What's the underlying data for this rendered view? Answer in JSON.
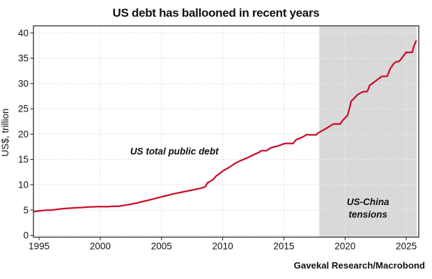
{
  "figure": {
    "title": "US debt has ballooned in recent years",
    "source": "Gavekal Research/Macrobond"
  },
  "chart_data": {
    "type": "line",
    "title": "US debt has ballooned in recent years",
    "xlabel": "",
    "ylabel": "US$, trillion",
    "x_ticks": [
      1995,
      2000,
      2005,
      2010,
      2015,
      2020,
      2025
    ],
    "y_ticks": [
      0,
      5,
      10,
      15,
      20,
      25,
      30,
      35,
      40
    ],
    "xlim": [
      1994.54,
      2026.02
    ],
    "ylim": [
      -0.35,
      41.4
    ],
    "grid": "dotted",
    "legend_position": "none",
    "colors": {
      "line": "#c8102e",
      "band": "#d9d9d9",
      "grid": "#c6c6c6",
      "grid_on_band": "#ffffff",
      "frame": "#1c1c1c"
    },
    "shaded_region": {
      "label": "US-China tensions",
      "x_start": 2017.9,
      "x_end": 2025.85,
      "color": "#d9d9d9"
    },
    "series": [
      {
        "name": "US total public debt",
        "color": "#c8102e",
        "points": [
          [
            1994.6,
            4.7
          ],
          [
            1995,
            4.85
          ],
          [
            1995.5,
            4.95
          ],
          [
            1996,
            5.0
          ],
          [
            1996.5,
            5.15
          ],
          [
            1997,
            5.3
          ],
          [
            1997.5,
            5.37
          ],
          [
            1998,
            5.45
          ],
          [
            1998.5,
            5.5
          ],
          [
            1999,
            5.6
          ],
          [
            1999.5,
            5.65
          ],
          [
            2000,
            5.7
          ],
          [
            2000.5,
            5.66
          ],
          [
            2001,
            5.72
          ],
          [
            2001.5,
            5.75
          ],
          [
            2002,
            5.95
          ],
          [
            2002.5,
            6.15
          ],
          [
            2003,
            6.4
          ],
          [
            2003.5,
            6.7
          ],
          [
            2004,
            7.0
          ],
          [
            2004.5,
            7.3
          ],
          [
            2005,
            7.6
          ],
          [
            2005.5,
            7.9
          ],
          [
            2006,
            8.2
          ],
          [
            2006.5,
            8.45
          ],
          [
            2007,
            8.7
          ],
          [
            2007.5,
            8.95
          ],
          [
            2008,
            9.2
          ],
          [
            2008.35,
            9.4
          ],
          [
            2008.6,
            9.65
          ],
          [
            2008.75,
            10.35
          ],
          [
            2009,
            10.7
          ],
          [
            2009.25,
            11.1
          ],
          [
            2009.5,
            11.8
          ],
          [
            2009.75,
            12.2
          ],
          [
            2010,
            12.7
          ],
          [
            2010.5,
            13.4
          ],
          [
            2011,
            14.2
          ],
          [
            2011.5,
            14.8
          ],
          [
            2012,
            15.3
          ],
          [
            2012.5,
            15.9
          ],
          [
            2013,
            16.45
          ],
          [
            2013.15,
            16.74
          ],
          [
            2013.6,
            16.74
          ],
          [
            2013.8,
            17.1
          ],
          [
            2014,
            17.35
          ],
          [
            2014.5,
            17.65
          ],
          [
            2015,
            18.1
          ],
          [
            2015.15,
            18.15
          ],
          [
            2015.75,
            18.15
          ],
          [
            2016,
            18.9
          ],
          [
            2016.5,
            19.4
          ],
          [
            2016.9,
            19.95
          ],
          [
            2017.05,
            19.85
          ],
          [
            2017.65,
            19.85
          ],
          [
            2017.8,
            20.25
          ],
          [
            2018,
            20.5
          ],
          [
            2018.5,
            21.2
          ],
          [
            2019,
            21.95
          ],
          [
            2019.15,
            22.0
          ],
          [
            2019.6,
            22.0
          ],
          [
            2019.8,
            22.7
          ],
          [
            2020,
            23.2
          ],
          [
            2020.2,
            23.7
          ],
          [
            2020.35,
            25.0
          ],
          [
            2020.5,
            26.5
          ],
          [
            2020.75,
            27.1
          ],
          [
            2021,
            27.75
          ],
          [
            2021.3,
            28.2
          ],
          [
            2021.55,
            28.4
          ],
          [
            2021.8,
            28.4
          ],
          [
            2021.9,
            28.9
          ],
          [
            2022,
            29.6
          ],
          [
            2022.5,
            30.5
          ],
          [
            2023,
            31.4
          ],
          [
            2023.45,
            31.45
          ],
          [
            2023.7,
            33.0
          ],
          [
            2024,
            34.0
          ],
          [
            2024.2,
            34.3
          ],
          [
            2024.4,
            34.35
          ],
          [
            2024.6,
            34.9
          ],
          [
            2024.75,
            35.4
          ],
          [
            2025,
            36.2
          ],
          [
            2025.08,
            36.1
          ],
          [
            2025.5,
            36.2
          ],
          [
            2025.6,
            37.2
          ],
          [
            2025.8,
            38.4
          ]
        ]
      }
    ],
    "annotations": [
      {
        "id": "series-label",
        "lines": [
          "US total public debt"
        ],
        "x": 2006.05,
        "y": 16.0,
        "color": "#c8102e",
        "italic": true,
        "bold": true
      },
      {
        "id": "band-label",
        "lines": [
          "US-China",
          "tensions"
        ],
        "x": 2021.87,
        "y": 6.0,
        "color": "#1a1a1a",
        "italic": true,
        "bold": true
      }
    ],
    "source": "Gavekal Research/Macrobond"
  }
}
